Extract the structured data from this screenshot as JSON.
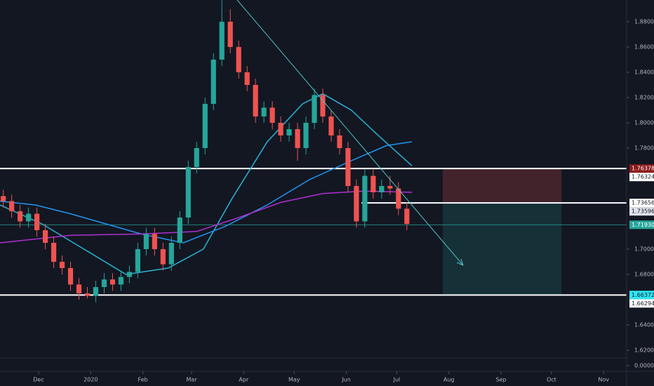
{
  "chart_data": {
    "type": "candlestick",
    "x": [
      9,
      14,
      19,
      24,
      29,
      34,
      39,
      44,
      49,
      54,
      59,
      64,
      69,
      74,
      79,
      84,
      89,
      94,
      99,
      104,
      109,
      114,
      119,
      124,
      129,
      134,
      139,
      144,
      149,
      154,
      159,
      164,
      169,
      174,
      179,
      184,
      189,
      194,
      199,
      204,
      209,
      214,
      219,
      224,
      229,
      234,
      239,
      244,
      249
    ],
    "open": [
      1.742,
      1.738,
      1.73,
      1.722,
      1.728,
      1.715,
      1.705,
      1.69,
      1.685,
      1.672,
      1.665,
      1.663,
      1.67,
      1.676,
      1.672,
      1.678,
      1.682,
      1.7,
      1.712,
      1.7,
      1.688,
      1.705,
      1.725,
      1.765,
      1.78,
      1.815,
      1.85,
      1.88,
      1.86,
      1.84,
      1.83,
      1.805,
      1.812,
      1.8,
      1.79,
      1.795,
      1.78,
      1.8,
      1.822,
      1.805,
      1.79,
      1.78,
      1.75,
      1.722,
      1.758,
      1.745,
      1.75,
      1.748,
      1.732
    ],
    "high": [
      1.747,
      1.743,
      1.735,
      1.733,
      1.733,
      1.72,
      1.71,
      1.695,
      1.69,
      1.677,
      1.67,
      1.675,
      1.681,
      1.681,
      1.683,
      1.687,
      1.705,
      1.717,
      1.717,
      1.705,
      1.71,
      1.73,
      1.77,
      1.785,
      1.82,
      1.855,
      1.897,
      1.89,
      1.865,
      1.845,
      1.835,
      1.817,
      1.817,
      1.805,
      1.8,
      1.8,
      1.805,
      1.827,
      1.827,
      1.81,
      1.795,
      1.785,
      1.755,
      1.763,
      1.763,
      1.755,
      1.758,
      1.753,
      1.737
    ],
    "low": [
      1.733,
      1.725,
      1.717,
      1.717,
      1.71,
      1.7,
      1.685,
      1.68,
      1.667,
      1.66,
      1.661,
      1.658,
      1.665,
      1.667,
      1.667,
      1.673,
      1.677,
      1.695,
      1.695,
      1.683,
      1.683,
      1.7,
      1.72,
      1.76,
      1.775,
      1.81,
      1.845,
      1.855,
      1.835,
      1.825,
      1.8,
      1.8,
      1.795,
      1.785,
      1.785,
      1.77,
      1.775,
      1.795,
      1.8,
      1.785,
      1.775,
      1.745,
      1.717,
      1.717,
      1.74,
      1.74,
      1.743,
      1.727,
      1.715
    ],
    "close": [
      1.738,
      1.73,
      1.722,
      1.728,
      1.715,
      1.705,
      1.69,
      1.685,
      1.672,
      1.665,
      1.663,
      1.67,
      1.676,
      1.672,
      1.678,
      1.682,
      1.7,
      1.712,
      1.7,
      1.688,
      1.705,
      1.725,
      1.765,
      1.78,
      1.815,
      1.85,
      1.88,
      1.86,
      1.84,
      1.83,
      1.805,
      1.812,
      1.8,
      1.79,
      1.795,
      1.78,
      1.8,
      1.822,
      1.805,
      1.79,
      1.78,
      1.75,
      1.722,
      1.758,
      1.745,
      1.75,
      1.748,
      1.732,
      1.72
    ],
    "up_color": "#26a69a",
    "down_color": "#ef5350",
    "series": [
      {
        "color": "#29b6d6",
        "x": [
          7,
          32,
          57,
          82,
          107,
          128,
          145,
          166,
          187,
          199,
          216,
          232,
          252
        ],
        "values": [
          1.735,
          1.72,
          1.7,
          1.68,
          1.685,
          1.7,
          1.74,
          1.785,
          1.815,
          1.823,
          1.81,
          1.79,
          1.766
        ]
      },
      {
        "color": "#2196f3",
        "x": [
          7,
          28,
          49,
          70,
          91,
          116,
          141,
          166,
          191,
          216,
          237,
          252
        ],
        "values": [
          1.738,
          1.735,
          1.728,
          1.72,
          1.712,
          1.705,
          1.718,
          1.735,
          1.755,
          1.77,
          1.782,
          1.785
        ]
      },
      {
        "color": "#b02fd0",
        "x": [
          7,
          49,
          91,
          124,
          149,
          174,
          199,
          224,
          252
        ],
        "values": [
          1.705,
          1.711,
          1.712,
          1.714,
          1.725,
          1.737,
          1.744,
          1.746,
          1.745
        ]
      }
    ],
    "xlim": [
      7.05,
      379.7
    ],
    "xticks": [
      {
        "value": 30,
        "label": "Dec"
      },
      {
        "value": 61,
        "label": "2020"
      },
      {
        "value": 92,
        "label": "Feb"
      },
      {
        "value": 121,
        "label": "Mar"
      },
      {
        "value": 152,
        "label": "Apr"
      },
      {
        "value": 182,
        "label": "May"
      },
      {
        "value": 213,
        "label": "Jun"
      },
      {
        "value": 243,
        "label": "Jul"
      },
      {
        "value": 274,
        "label": "Aug"
      },
      {
        "value": 305,
        "label": "Sep"
      },
      {
        "value": 335,
        "label": "Oct"
      },
      {
        "value": 366,
        "label": "Nov"
      }
    ],
    "ylim": [
      1.6139,
      1.8972
    ],
    "yticks": [
      {
        "value": 1.62,
        "label": "1.62000"
      },
      {
        "value": 1.64,
        "label": "1.64000"
      },
      {
        "value": 1.68,
        "label": "1.68000"
      },
      {
        "value": 1.7,
        "label": "1.70000"
      },
      {
        "value": 1.78,
        "label": "1.78000"
      },
      {
        "value": 1.8,
        "label": "1.80000"
      },
      {
        "value": 1.82,
        "label": "1.82000"
      },
      {
        "value": 1.84,
        "label": "1.84000"
      },
      {
        "value": 1.86,
        "label": "1.86000"
      },
      {
        "value": 1.88,
        "label": "1.88000"
      }
    ],
    "volume_ticks": [
      {
        "value": 0,
        "label": "0.00000"
      }
    ],
    "hlines": [
      {
        "value": 1.76378,
        "x": [
          7.05,
          379.7
        ],
        "color": "#ffffff"
      },
      {
        "value": 1.73656,
        "x": [
          222,
          379.7
        ],
        "color": "#ffffff"
      },
      {
        "value": 1.66372,
        "x": [
          7.05,
          379.7
        ],
        "color": "#ffffff"
      },
      {
        "value": 1.7193,
        "x": [
          7.05,
          379.7
        ],
        "color": "#26a69a"
      }
    ],
    "position": {
      "stop": 1.76378,
      "entry": 1.73656,
      "target": 1.66372,
      "x": [
        270.4,
        341
      ]
    },
    "price_labels": [
      {
        "value": 1.76378,
        "label": "1.76378",
        "bg": "#8e1b1b",
        "fg": "#ffffff"
      },
      {
        "value": 1.76324,
        "label": "1.76324",
        "bg": "#ffffff",
        "fg": "#131722"
      },
      {
        "value": 1.73656,
        "label": "1.73656",
        "bg": "#ffffff",
        "fg": "#131722"
      },
      {
        "value": 1.73596,
        "label": "1.73596",
        "bg": "#e0e3eb",
        "fg": "#131722"
      },
      {
        "value": 1.7193,
        "label": "1.71930",
        "bg": "#26a69a",
        "fg": "#ffffff"
      },
      {
        "value": 1.66372,
        "label": "1.66372",
        "bg": "#2ee6f5",
        "fg": "#131722"
      },
      {
        "value": 1.66294,
        "label": "1.66294",
        "bg": "#ffffff",
        "fg": "#131722"
      }
    ]
  }
}
